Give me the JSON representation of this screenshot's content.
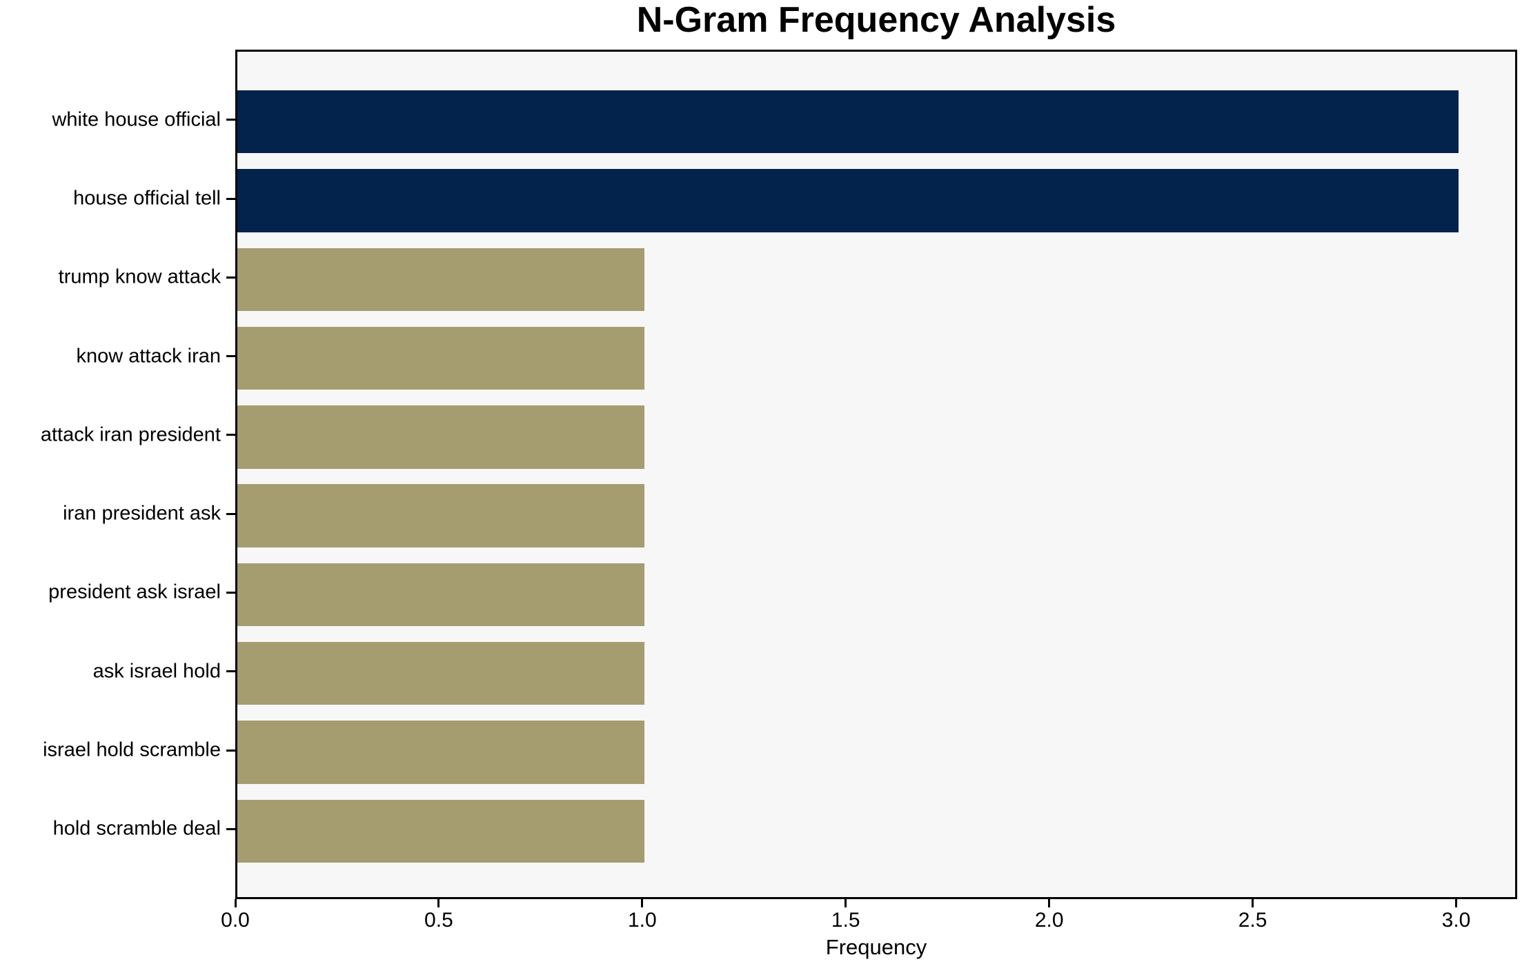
{
  "chart_data": {
    "type": "bar",
    "orientation": "horizontal",
    "title": "N-Gram Frequency Analysis",
    "xlabel": "Frequency",
    "ylabel": "",
    "categories": [
      "white house official",
      "house official tell",
      "trump know attack",
      "know attack iran",
      "attack iran president",
      "iran president ask",
      "president ask israel",
      "ask israel hold",
      "israel hold scramble",
      "hold scramble deal"
    ],
    "values": [
      3,
      3,
      1,
      1,
      1,
      1,
      1,
      1,
      1,
      1
    ],
    "bar_colors": [
      "#03234d",
      "#03234d",
      "#a59c70",
      "#a59c70",
      "#a59c70",
      "#a59c70",
      "#a59c70",
      "#a59c70",
      "#a59c70",
      "#a59c70"
    ],
    "x_ticks": [
      0,
      0.5,
      1,
      1.5,
      2,
      2.5,
      3
    ],
    "x_tick_labels": [
      "0.0",
      "0.5",
      "1.0",
      "1.5",
      "2.0",
      "2.5",
      "3.0"
    ],
    "xlim": [
      0,
      3.15
    ],
    "grid": false,
    "legend": "none",
    "colors": {
      "bar_highlight": "#03234d",
      "bar_default": "#a59c70",
      "plot_background": "#f7f7f7",
      "figure_background": "#ffffff",
      "axis": "#000000",
      "text": "#000000"
    }
  }
}
